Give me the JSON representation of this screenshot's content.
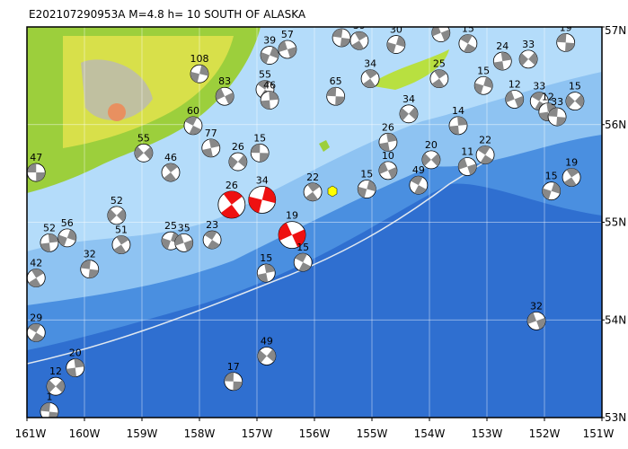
{
  "map": {
    "title": "E202107290953A M=4.8 h= 10 SOUTH OF ALASKA",
    "xlim": [
      -161,
      -151
    ],
    "ylim": [
      53,
      57
    ],
    "xticks": [
      {
        "value": -161,
        "label": "161W"
      },
      {
        "value": -160,
        "label": "160W"
      },
      {
        "value": -159,
        "label": "159W"
      },
      {
        "value": -158,
        "label": "158W"
      },
      {
        "value": -157,
        "label": "157W"
      },
      {
        "value": -156,
        "label": "156W"
      },
      {
        "value": -155,
        "label": "155W"
      },
      {
        "value": -154,
        "label": "154W"
      },
      {
        "value": -153,
        "label": "153W"
      },
      {
        "value": -152,
        "label": "152W"
      },
      {
        "value": -151,
        "label": "151W"
      }
    ],
    "yticks": [
      {
        "value": 53,
        "label": "53N"
      },
      {
        "value": 54,
        "label": "54N"
      },
      {
        "value": 55,
        "label": "55N"
      },
      {
        "value": 56,
        "label": "56N"
      },
      {
        "value": 57,
        "label": "57N"
      }
    ],
    "grid": true,
    "beachballs": [
      {
        "lon": -160.84,
        "lat": 55.51,
        "label": "47"
      },
      {
        "lon": -158.5,
        "lat": 55.51,
        "label": "46"
      },
      {
        "lon": -158.0,
        "lat": 56.52,
        "label": "108"
      },
      {
        "lon": -157.56,
        "lat": 56.29,
        "label": "83"
      },
      {
        "lon": -158.11,
        "lat": 55.99,
        "label": "60"
      },
      {
        "lon": -157.8,
        "lat": 55.76,
        "label": "77"
      },
      {
        "lon": -157.33,
        "lat": 55.62,
        "label": "26"
      },
      {
        "lon": -156.95,
        "lat": 55.71,
        "label": "15"
      },
      {
        "lon": -157.44,
        "lat": 55.18,
        "label": "26",
        "highlight": true
      },
      {
        "lon": -156.91,
        "lat": 55.23,
        "label": "34",
        "highlight": true
      },
      {
        "lon": -156.39,
        "lat": 54.87,
        "label": "19",
        "highlight": true
      },
      {
        "lon": -156.2,
        "lat": 54.59,
        "label": "15"
      },
      {
        "lon": -156.84,
        "lat": 54.48,
        "label": "15"
      },
      {
        "lon": -156.83,
        "lat": 53.63,
        "label": "49"
      },
      {
        "lon": -157.41,
        "lat": 53.37,
        "label": "17"
      },
      {
        "lon": -156.03,
        "lat": 55.31,
        "label": "22"
      },
      {
        "lon": -155.09,
        "lat": 55.34,
        "label": "15"
      },
      {
        "lon": -154.72,
        "lat": 55.53,
        "label": "10"
      },
      {
        "lon": -154.19,
        "lat": 55.38,
        "label": "49"
      },
      {
        "lon": -154.72,
        "lat": 55.82,
        "label": "26"
      },
      {
        "lon": -154.36,
        "lat": 56.11,
        "label": "34"
      },
      {
        "lon": -155.63,
        "lat": 56.29,
        "label": "65"
      },
      {
        "lon": -155.03,
        "lat": 56.47,
        "label": "34"
      },
      {
        "lon": -154.58,
        "lat": 56.82,
        "label": "30"
      },
      {
        "lon": -153.8,
        "lat": 56.94,
        "label": "21"
      },
      {
        "lon": -153.33,
        "lat": 56.83,
        "label": "15"
      },
      {
        "lon": -152.73,
        "lat": 56.65,
        "label": "24"
      },
      {
        "lon": -152.28,
        "lat": 56.67,
        "label": "33"
      },
      {
        "lon": -151.63,
        "lat": 56.84,
        "label": "19"
      },
      {
        "lon": -153.83,
        "lat": 56.47,
        "label": "25"
      },
      {
        "lon": -153.06,
        "lat": 56.4,
        "label": "15"
      },
      {
        "lon": -152.52,
        "lat": 56.26,
        "label": "12"
      },
      {
        "lon": -152.09,
        "lat": 56.24,
        "label": "33"
      },
      {
        "lon": -151.94,
        "lat": 56.13,
        "label": "12"
      },
      {
        "lon": -151.47,
        "lat": 56.24,
        "label": "15"
      },
      {
        "lon": -151.78,
        "lat": 56.08,
        "label": "33"
      },
      {
        "lon": -151.53,
        "lat": 55.46,
        "label": "19"
      },
      {
        "lon": -151.88,
        "lat": 55.32,
        "label": "15"
      },
      {
        "lon": -152.14,
        "lat": 53.99,
        "label": "32"
      },
      {
        "lon": -160.84,
        "lat": 53.87,
        "label": "29"
      },
      {
        "lon": -160.16,
        "lat": 53.51,
        "label": "20"
      },
      {
        "lon": -160.5,
        "lat": 53.32,
        "label": "12"
      },
      {
        "lon": -160.61,
        "lat": 53.06,
        "label": "1"
      },
      {
        "lon": -159.36,
        "lat": 54.77,
        "label": "51"
      },
      {
        "lon": -158.5,
        "lat": 54.81,
        "label": "25"
      },
      {
        "lon": -158.27,
        "lat": 54.79,
        "label": "35"
      },
      {
        "lon": -157.78,
        "lat": 54.82,
        "label": "23"
      },
      {
        "lon": -160.61,
        "lat": 54.79,
        "label": "52"
      },
      {
        "lon": -159.44,
        "lat": 55.07,
        "label": "52"
      },
      {
        "lon": -159.91,
        "lat": 54.52,
        "label": "32"
      },
      {
        "lon": -160.84,
        "lat": 54.43,
        "label": "42"
      },
      {
        "lon": -160.3,
        "lat": 54.84,
        "label": "56"
      },
      {
        "lon": -153.34,
        "lat": 55.57,
        "label": "11"
      },
      {
        "lon": -153.03,
        "lat": 55.69,
        "label": "22"
      },
      {
        "lon": -153.5,
        "lat": 55.99,
        "label": "14"
      },
      {
        "lon": -153.97,
        "lat": 55.64,
        "label": "20"
      },
      {
        "lon": -155.53,
        "lat": 56.89,
        "label": "68"
      },
      {
        "lon": -155.22,
        "lat": 56.86,
        "label": "39"
      },
      {
        "lon": -156.78,
        "lat": 56.71,
        "label": "39"
      },
      {
        "lon": -156.47,
        "lat": 56.77,
        "label": "57"
      },
      {
        "lon": -156.86,
        "lat": 56.36,
        "label": "55"
      },
      {
        "lon": -156.78,
        "lat": 56.25,
        "label": "46"
      },
      {
        "lon": -158.97,
        "lat": 55.71,
        "label": "55"
      }
    ]
  }
}
